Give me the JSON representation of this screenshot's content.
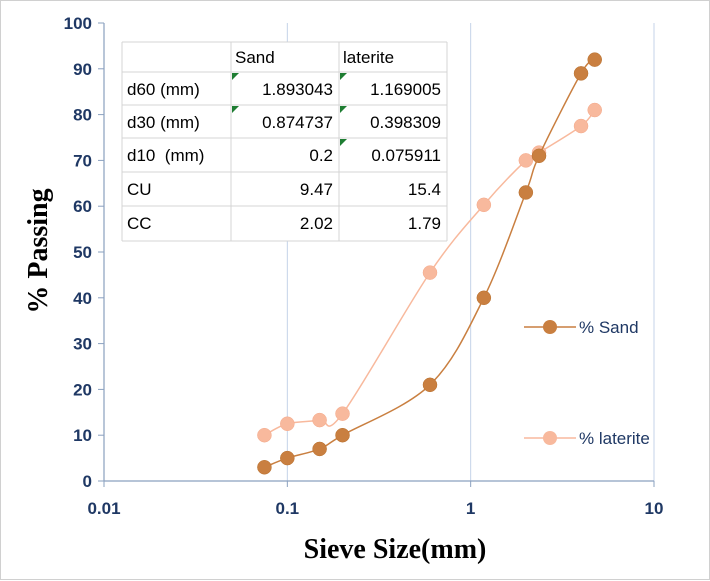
{
  "chart_data": {
    "type": "scatter",
    "xscale": "log",
    "xlim": [
      0.01,
      10
    ],
    "ylim": [
      0,
      100
    ],
    "xticks": [
      "0.01",
      "0.1",
      "1",
      "10"
    ],
    "yticks": [
      "0",
      "10",
      "20",
      "30",
      "40",
      "50",
      "60",
      "70",
      "80",
      "90",
      "100"
    ],
    "xlabel": "Sieve Size(mm)",
    "ylabel": "% Passing",
    "grid": "vertical",
    "legend_position": "right",
    "series": [
      {
        "name": "% Sand",
        "color": "#c97f40",
        "x": [
          0.075,
          0.1,
          0.15,
          0.2,
          0.6,
          1.18,
          2.0,
          2.36,
          4.0,
          4.75
        ],
        "y": [
          3,
          5,
          7,
          10,
          21,
          40,
          63,
          71,
          89,
          92
        ]
      },
      {
        "name": "% laterite",
        "color": "#f8b99d",
        "x": [
          0.075,
          0.1,
          0.15,
          0.2,
          0.6,
          1.18,
          2.0,
          2.36,
          4.0,
          4.75
        ],
        "y": [
          10,
          12.5,
          13.3,
          14.7,
          45.5,
          60.3,
          70,
          71.7,
          77.5,
          81
        ]
      }
    ]
  },
  "table": {
    "headers": [
      "",
      "Sand",
      "laterite"
    ],
    "rows": [
      [
        "d60 (mm)",
        "1.893043",
        "1.169005"
      ],
      [
        "d30 (mm)",
        "0.874737",
        "0.398309"
      ],
      [
        "d10  (mm)",
        "0.2",
        "0.075911"
      ],
      [
        "CU",
        "9.47",
        "15.4"
      ],
      [
        "CC",
        "2.02",
        "1.79"
      ]
    ]
  }
}
